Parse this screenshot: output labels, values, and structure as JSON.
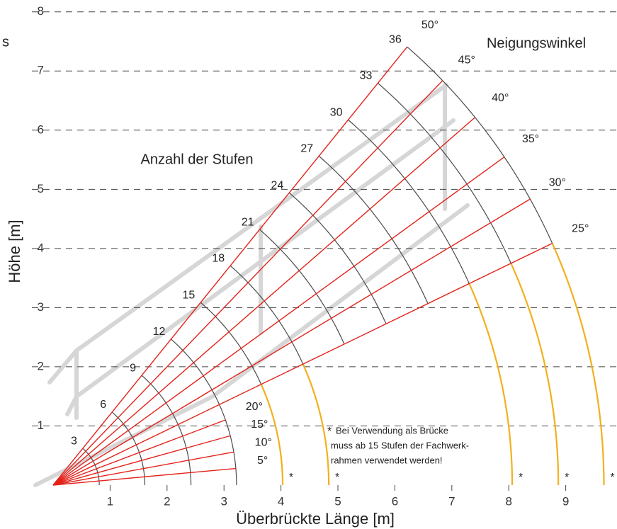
{
  "chart_data": {
    "type": "polar",
    "corner_text": "s",
    "angle_title": "Neigungswinkel",
    "steps_title": "Anzahl der Stufen",
    "xlabel": "Überbrückte Länge [m]",
    "ylabel": "Höhe [m]",
    "xlim": [
      0,
      9.9
    ],
    "ylim": [
      0,
      8.2
    ],
    "xticks": [
      1,
      2,
      3,
      4,
      5,
      6,
      7,
      8,
      9
    ],
    "yticks": [
      1,
      2,
      3,
      4,
      5,
      6,
      7,
      8
    ],
    "grid": true,
    "rays": {
      "color": "#e3231b",
      "angles": [
        {
          "value": 5,
          "label": "5°"
        },
        {
          "value": 10,
          "label": "10°"
        },
        {
          "value": 15,
          "label": "15°"
        },
        {
          "value": 20,
          "label": "20°"
        },
        {
          "value": 25,
          "label": "25°"
        },
        {
          "value": 30,
          "label": "30°"
        },
        {
          "value": 35,
          "label": "35°"
        },
        {
          "value": 40,
          "label": "40°"
        },
        {
          "value": 45,
          "label": "45°"
        },
        {
          "value": 50,
          "label": "50°"
        }
      ],
      "lengths": [
        3.22,
        3.22,
        3.22,
        3.22,
        9.67,
        9.67,
        9.67,
        9.67,
        9.67,
        9.67
      ]
    },
    "arcs": {
      "color": "#4a4a4a",
      "highlight_color": "#f2b01e",
      "steps": [
        3,
        6,
        9,
        12,
        15,
        18,
        21,
        24,
        27,
        30,
        33,
        36
      ],
      "radii": [
        0.81,
        1.61,
        2.42,
        3.22,
        4.03,
        4.84,
        5.64,
        6.45,
        7.26,
        8.06,
        8.87,
        9.67
      ],
      "min_angle": [
        0,
        0,
        0,
        0,
        25,
        25,
        25,
        25,
        25,
        25,
        25,
        25
      ],
      "max_angle": 50,
      "highlight": [
        false,
        false,
        false,
        false,
        true,
        true,
        false,
        false,
        false,
        true,
        true,
        true
      ]
    },
    "marker": "*",
    "footnote": [
      "Bei Verwendung als Brücke",
      "muss ab 15 Stufen der Fachwerk-",
      "rahmen verwendet werden!"
    ]
  }
}
